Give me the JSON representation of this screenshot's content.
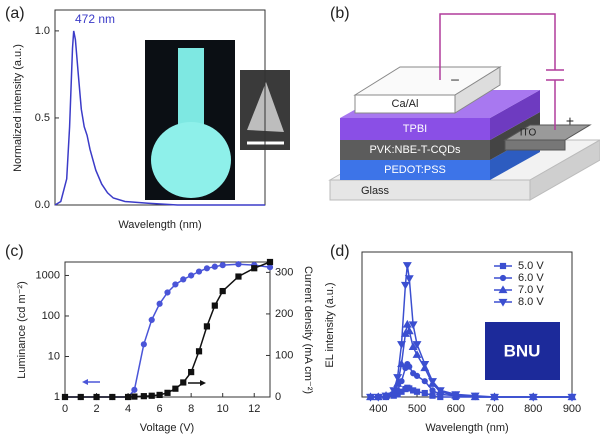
{
  "chart_data": [
    {
      "type": "line",
      "panel_label": "(a)",
      "xlabel": "Wavelength (nm)",
      "ylabel": "Normalized intensity (a.u.)",
      "annotation": "472 nm",
      "x": [
        440,
        450,
        460,
        465,
        470,
        472,
        475,
        480,
        485,
        490,
        495,
        500,
        510,
        520,
        530,
        540,
        560,
        600,
        650,
        700,
        800
      ],
      "xlim": [
        440,
        800
      ],
      "ylim": [
        0,
        1.12
      ],
      "yticks": [
        {
          "value": 0,
          "label": "0.0"
        },
        {
          "value": 0.5,
          "label": "0.5"
        },
        {
          "value": 1,
          "label": "1.0"
        }
      ],
      "series": [
        {
          "color": "#3b3bc8",
          "values": [
            0,
            0.02,
            0.15,
            0.45,
            0.9,
            1.0,
            0.95,
            0.75,
            0.55,
            0.45,
            0.4,
            0.32,
            0.2,
            0.12,
            0.07,
            0.04,
            0.02,
            0.01,
            0,
            0,
            0
          ]
        }
      ]
    },
    {
      "type": "line",
      "panel_label": "(c)",
      "xlabel": "Voltage (V)",
      "ylabel": "Luminance (cd m⁻²)",
      "y2label": "Current density (mA cm⁻²)",
      "x": [
        0,
        1,
        2,
        3,
        4,
        4.4,
        5,
        5.5,
        6,
        6.5,
        7,
        7.5,
        8,
        8.5,
        9,
        9.5,
        10,
        11,
        12,
        13
      ],
      "xlim": [
        0,
        13
      ],
      "xticks": [
        0,
        2,
        4,
        6,
        8,
        10,
        12
      ],
      "ylim": [
        1,
        2150
      ],
      "ylog": true,
      "yticks": [
        1,
        10,
        100,
        1000
      ],
      "y2lim": [
        0,
        325
      ],
      "y2ticks": [
        0,
        100,
        200,
        300
      ],
      "series": [
        {
          "color": "#4a55d8",
          "marker": "circle",
          "values": [
            1,
            1,
            1,
            1,
            1,
            1.5,
            20,
            80,
            200,
            380,
            600,
            800,
            1000,
            1250,
            1500,
            1650,
            1800,
            1900,
            1800,
            1600
          ]
        },
        {
          "color": "#111111",
          "marker": "square",
          "axis": "y2",
          "values": [
            0,
            0,
            0,
            0,
            0,
            1,
            2,
            3,
            5,
            10,
            20,
            35,
            60,
            110,
            170,
            220,
            255,
            290,
            310,
            325
          ]
        }
      ]
    },
    {
      "type": "line",
      "panel_label": "(d)",
      "xlabel": "Wavelength (nm)",
      "ylabel": "EL intensity (a.u.)",
      "inset_text": "BNU",
      "x": [
        380,
        400,
        420,
        440,
        450,
        460,
        470,
        475,
        480,
        490,
        500,
        520,
        540,
        560,
        600,
        650,
        700,
        800,
        900
      ],
      "xlim": [
        358,
        900
      ],
      "xticks": [
        400,
        500,
        600,
        700,
        800,
        900
      ],
      "ylim": [
        0,
        1.1
      ],
      "legend": "upper right",
      "series": [
        {
          "name": "5.0 V",
          "color": "#3b4fd0",
          "marker": "square",
          "values": [
            0,
            0,
            0,
            0.01,
            0.02,
            0.04,
            0.06,
            0.07,
            0.065,
            0.05,
            0.04,
            0.03,
            0.01,
            0,
            0,
            0,
            0,
            0,
            0
          ]
        },
        {
          "name": "6.0 V",
          "color": "#3b4fd0",
          "marker": "circle",
          "values": [
            0,
            0,
            0,
            0.02,
            0.05,
            0.12,
            0.22,
            0.25,
            0.23,
            0.18,
            0.16,
            0.12,
            0.05,
            0.02,
            0.01,
            0,
            0,
            0,
            0
          ]
        },
        {
          "name": "7.0 V",
          "color": "#3b4fd0",
          "marker": "triangle-up",
          "values": [
            0,
            0,
            0.01,
            0.03,
            0.1,
            0.25,
            0.48,
            0.55,
            0.5,
            0.38,
            0.32,
            0.22,
            0.1,
            0.04,
            0.01,
            0,
            0,
            0,
            0
          ]
        },
        {
          "name": "8.0 V",
          "color": "#3b4fd0",
          "marker": "triangle-down",
          "values": [
            0,
            0,
            0.01,
            0.05,
            0.15,
            0.4,
            0.85,
            1.0,
            0.9,
            0.55,
            0.4,
            0.25,
            0.12,
            0.05,
            0.02,
            0.01,
            0,
            0,
            0
          ]
        }
      ]
    }
  ],
  "diagram": {
    "panel_label": "(b)",
    "cathode": "Ca/Al",
    "cathode_sign": "–",
    "etl": "TPBI",
    "eml": "PVK:NBE-T-CQDs",
    "htl": "PEDOT:PSS",
    "substrate": "Glass",
    "anode": "ITO",
    "anode_sign": "+"
  }
}
